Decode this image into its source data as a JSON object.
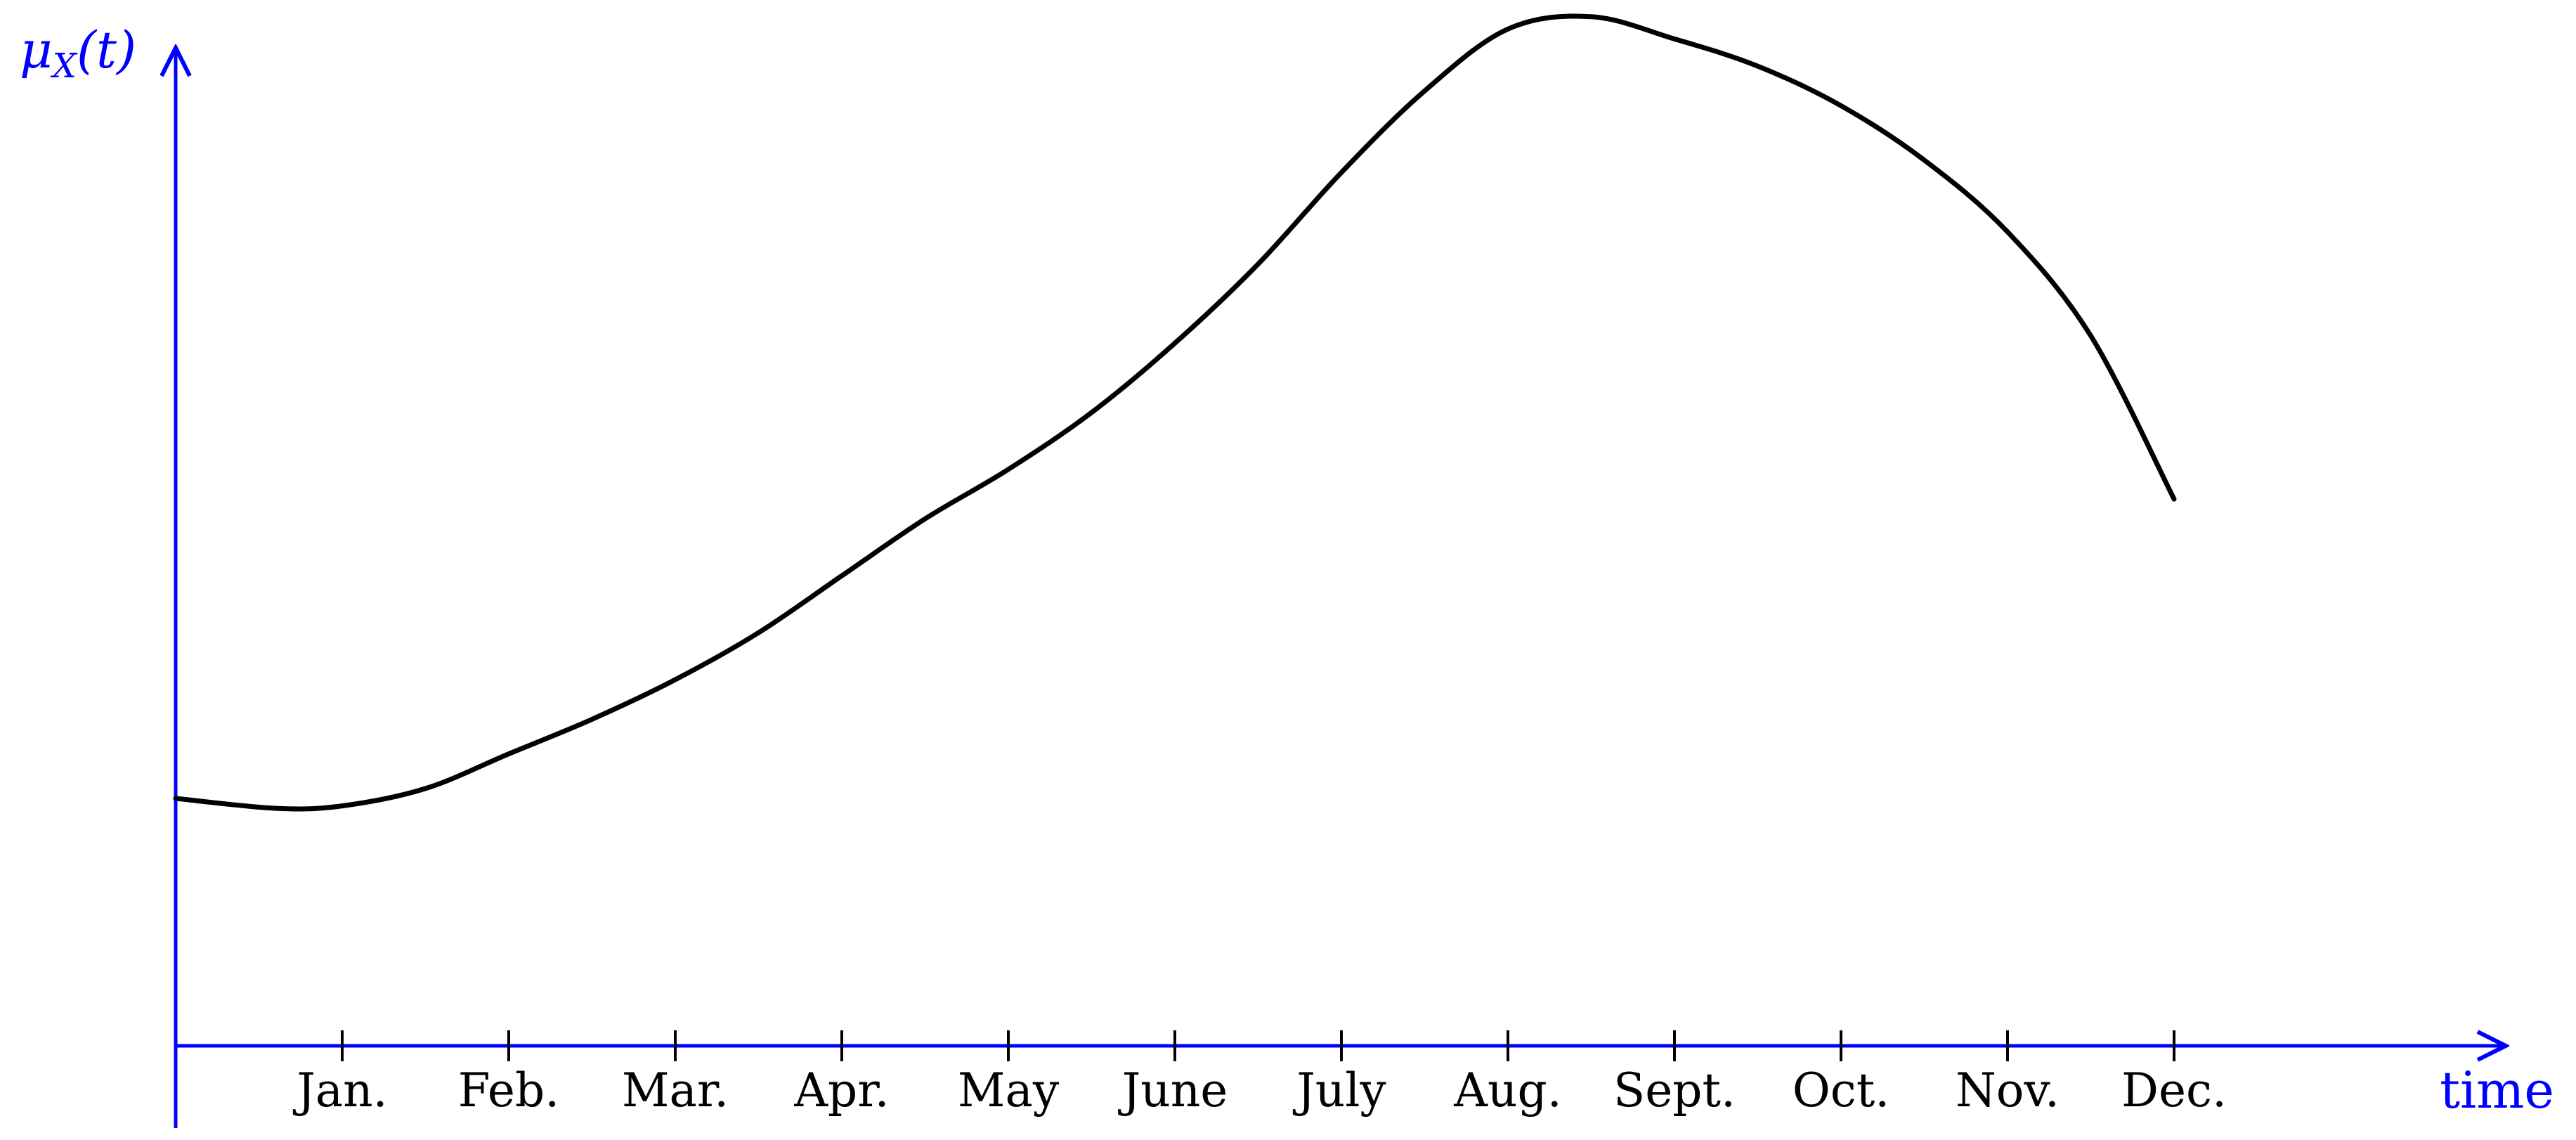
{
  "chart_data": {
    "type": "line",
    "xlabel": "time",
    "ylabel": "μ_X(t)",
    "ylabel_parts": {
      "mu": "μ",
      "sub": "X",
      "arg": "(t)"
    },
    "categories": [
      "Jan.",
      "Feb.",
      "Mar.",
      "Apr.",
      "May",
      "June",
      "July",
      "Aug.",
      "Sept.",
      "Oct.",
      "Nov.",
      "Dec."
    ],
    "x": [
      0,
      0.6,
      1,
      1.5,
      2,
      2.5,
      3,
      3.5,
      4,
      4.5,
      5,
      5.5,
      6,
      6.5,
      7,
      7.5,
      8,
      8.5,
      9,
      9.5,
      10,
      10.5,
      11,
      11.5,
      12
    ],
    "x_meaning": "months; tick k marks the named month, 0 is the start of the axis",
    "values": [
      1.0,
      0.96,
      0.97,
      1.04,
      1.18,
      1.32,
      1.48,
      1.67,
      1.9,
      2.13,
      2.33,
      2.56,
      2.84,
      3.16,
      3.53,
      3.86,
      4.11,
      4.16,
      4.07,
      3.96,
      3.8,
      3.58,
      3.29,
      2.87,
      2.21
    ],
    "ylim": [
      0,
      4.9
    ],
    "xlim": [
      0,
      14.1
    ],
    "grid": false,
    "legend": "none",
    "axis_color": "#0000ff",
    "line_color": "#000000"
  }
}
